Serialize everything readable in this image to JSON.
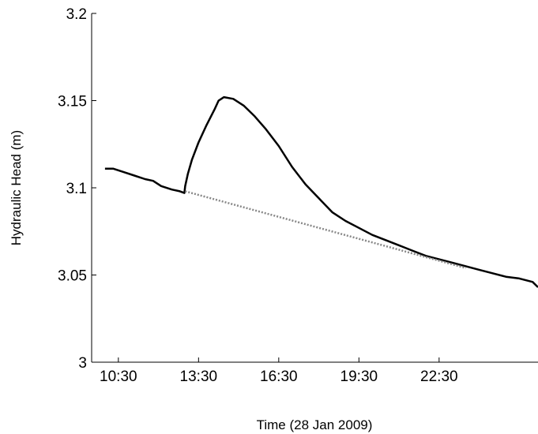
{
  "chart_data": {
    "type": "line",
    "title": "",
    "xlabel": "Time (28 Jan 2009)",
    "ylabel": "Hydraulic Head (m)",
    "xlim": [
      9.5,
      26.2
    ],
    "ylim": [
      3.0,
      3.2
    ],
    "x_ticks": [
      10.5,
      13.5,
      16.5,
      19.5,
      22.5
    ],
    "x_tick_labels": [
      "10:30",
      "13:30",
      "16:30",
      "19:30",
      "22:30"
    ],
    "y_ticks": [
      3.0,
      3.05,
      3.1,
      3.15,
      3.2
    ],
    "y_tick_labels": [
      "3",
      "3.05",
      "3.1",
      "3.15",
      "3.2"
    ],
    "grid": false,
    "series": [
      {
        "name": "",
        "color": "#000000",
        "style": "solid",
        "points": [
          [
            10.0,
            3.111
          ],
          [
            10.3,
            3.111
          ],
          [
            10.7,
            3.109
          ],
          [
            11.1,
            3.107
          ],
          [
            11.5,
            3.105
          ],
          [
            11.8,
            3.104
          ],
          [
            12.1,
            3.101
          ],
          [
            12.5,
            3.099
          ],
          [
            12.8,
            3.098
          ],
          [
            12.97,
            3.097
          ],
          [
            13.0,
            3.101
          ],
          [
            13.1,
            3.108
          ],
          [
            13.25,
            3.116
          ],
          [
            13.5,
            3.126
          ],
          [
            13.8,
            3.136
          ],
          [
            14.1,
            3.145
          ],
          [
            14.25,
            3.15
          ],
          [
            14.45,
            3.152
          ],
          [
            14.8,
            3.151
          ],
          [
            15.2,
            3.147
          ],
          [
            15.6,
            3.141
          ],
          [
            16.0,
            3.134
          ],
          [
            16.5,
            3.124
          ],
          [
            17.0,
            3.112
          ],
          [
            17.5,
            3.102
          ],
          [
            18.0,
            3.094
          ],
          [
            18.5,
            3.086
          ],
          [
            19.0,
            3.081
          ],
          [
            19.5,
            3.077
          ],
          [
            20.0,
            3.073
          ],
          [
            20.5,
            3.07
          ],
          [
            21.0,
            3.067
          ],
          [
            21.5,
            3.064
          ],
          [
            22.0,
            3.061
          ],
          [
            22.5,
            3.059
          ],
          [
            23.0,
            3.057
          ],
          [
            23.5,
            3.055
          ],
          [
            24.0,
            3.053
          ],
          [
            24.5,
            3.051
          ],
          [
            25.0,
            3.049
          ],
          [
            25.5,
            3.048
          ],
          [
            26.0,
            3.046
          ],
          [
            26.2,
            3.043
          ]
        ]
      },
      {
        "name": "",
        "color": "#888888",
        "style": "dotted",
        "points": [
          [
            13.0,
            3.098
          ],
          [
            23.5,
            3.054
          ]
        ]
      }
    ]
  }
}
